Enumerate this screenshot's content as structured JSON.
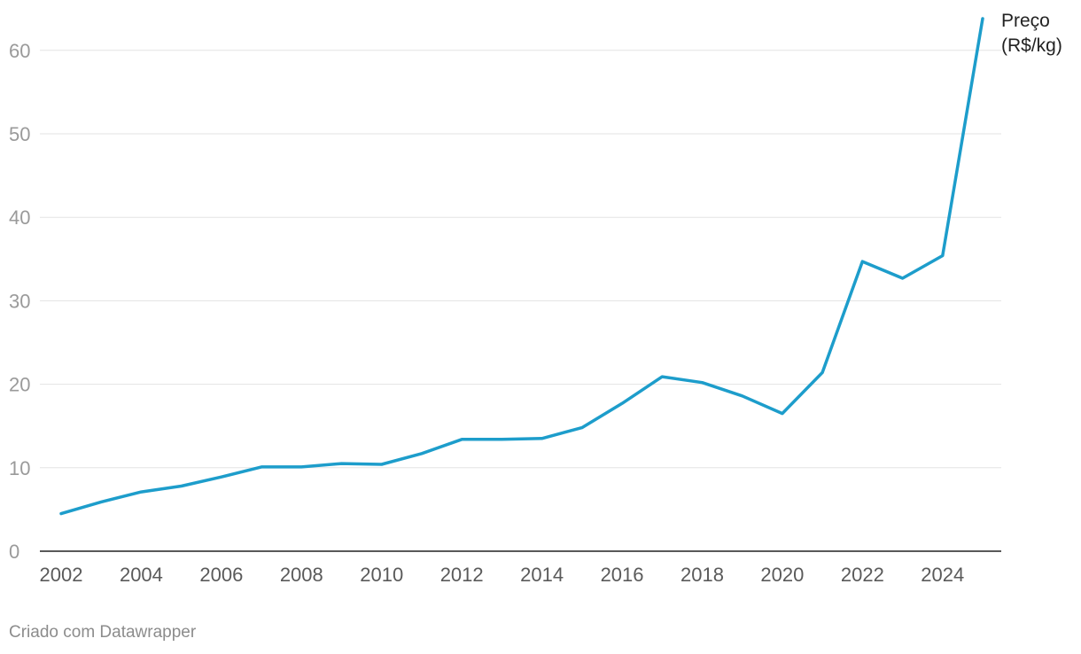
{
  "chart_data": {
    "type": "line",
    "title": "",
    "xlabel": "",
    "ylabel": "",
    "ylim": [
      0,
      65
    ],
    "xlim": [
      2002,
      2025
    ],
    "yticks": [
      0,
      10,
      20,
      30,
      40,
      50,
      60
    ],
    "xticks": [
      2002,
      2004,
      2006,
      2008,
      2010,
      2012,
      2014,
      2016,
      2018,
      2020,
      2022,
      2024
    ],
    "grid": true,
    "series": [
      {
        "name_lines": [
          "Preço",
          "(R$/kg)"
        ],
        "color": "#1d9dcb",
        "x": [
          2002,
          2003,
          2004,
          2005,
          2006,
          2007,
          2008,
          2009,
          2010,
          2011,
          2012,
          2013,
          2014,
          2015,
          2016,
          2017,
          2018,
          2019,
          2020,
          2021,
          2022,
          2023,
          2024,
          2025
        ],
        "values": [
          4.5,
          5.9,
          7.1,
          7.8,
          8.9,
          10.1,
          10.1,
          10.5,
          10.4,
          11.7,
          13.4,
          13.4,
          13.5,
          14.8,
          17.7,
          20.9,
          20.2,
          18.6,
          16.5,
          21.4,
          34.7,
          32.7,
          35.4,
          63.8
        ]
      }
    ]
  },
  "footer": {
    "credit": "Criado com Datawrapper"
  }
}
